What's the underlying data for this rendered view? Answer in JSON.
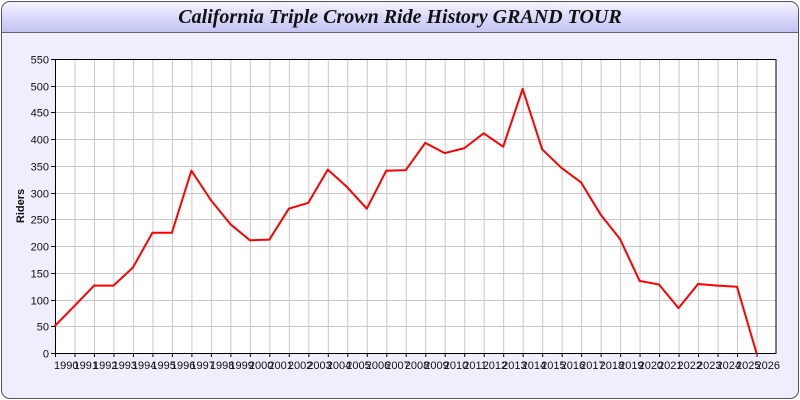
{
  "title": "California Triple Crown Ride History GRAND TOUR",
  "chart_data": {
    "type": "line",
    "title": "California Triple Crown Ride History GRAND TOUR",
    "xlabel": "",
    "ylabel": "Riders",
    "ylim": [
      0,
      550
    ],
    "yticks": [
      0,
      50,
      100,
      150,
      200,
      250,
      300,
      350,
      400,
      450,
      500,
      550
    ],
    "grid": true,
    "line_color": "#ff0000",
    "x": [
      1990,
      1991,
      1992,
      1993,
      1994,
      1995,
      1996,
      1997,
      1998,
      1999,
      2000,
      2001,
      2002,
      2003,
      2004,
      2005,
      2006,
      2007,
      2008,
      2009,
      2010,
      2011,
      2012,
      2013,
      2014,
      2015,
      2016,
      2017,
      2018,
      2019,
      2020,
      2021,
      2022,
      2023,
      2024,
      2025,
      2026
    ],
    "series": [
      {
        "values": [
          51,
          88,
          126,
          126,
          160,
          225,
          225,
          341,
          286,
          241,
          211,
          212,
          270,
          281,
          343,
          310,
          270,
          341,
          342,
          393,
          374,
          383,
          411,
          386,
          494,
          381,
          346,
          319,
          259,
          213,
          135,
          128,
          84,
          129,
          126,
          124,
          0
        ]
      }
    ]
  }
}
